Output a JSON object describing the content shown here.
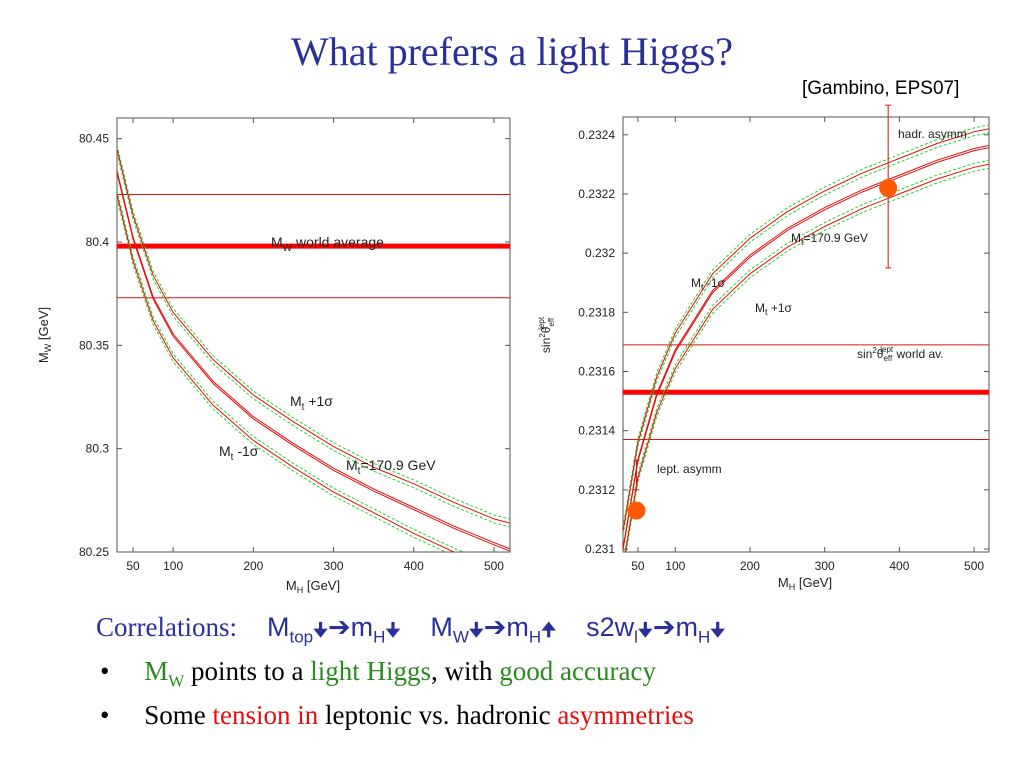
{
  "slide": {
    "title": "What prefers a light Higgs?",
    "citation": "[Gambino, EPS07]"
  },
  "colors": {
    "title": "#2b2f9a",
    "band": "#2bd12b",
    "curve": "#e01010",
    "average": "#ff0000",
    "marker": "#ff5a00",
    "green_text": "#2a8a1f"
  },
  "chart_data": [
    {
      "type": "line",
      "xlabel": "M_H [GeV]",
      "ylabel": "M_W [GeV]",
      "xlim": [
        30,
        520
      ],
      "ylim": [
        80.25,
        80.46
      ],
      "x_ticks": [
        "50",
        "100",
        "200",
        "300",
        "400",
        "500"
      ],
      "y_ticks": [
        "80.25",
        "80.3",
        "80.35",
        "80.4",
        "80.45"
      ],
      "labels": {
        "world_average": "M_W world average",
        "mt_plus": "M_t +1σ",
        "mt_minus": "M_t -1σ",
        "mt_central": "M_t=170.9 GeV"
      },
      "world_average": {
        "center": 80.398,
        "upper": 80.423,
        "lower": 80.373
      },
      "series": [
        {
          "name": "M_t +1σ",
          "x": [
            30,
            50,
            75,
            100,
            150,
            200,
            250,
            300,
            350,
            400,
            450,
            500,
            520
          ],
          "y": [
            80.445,
            80.413,
            80.384,
            80.366,
            80.343,
            80.326,
            80.313,
            80.301,
            80.291,
            80.283,
            80.274,
            80.266,
            80.264
          ]
        },
        {
          "name": "M_t=170.9 GeV",
          "x": [
            30,
            50,
            75,
            100,
            150,
            200,
            250,
            300,
            350,
            400,
            450,
            500,
            520
          ],
          "y": [
            80.434,
            80.402,
            80.373,
            80.355,
            80.332,
            80.315,
            80.302,
            80.29,
            80.28,
            80.271,
            80.262,
            80.254,
            80.251
          ]
        },
        {
          "name": "M_t -1σ",
          "x": [
            30,
            50,
            75,
            100,
            150,
            200,
            250,
            300,
            350,
            400,
            450,
            500,
            520
          ],
          "y": [
            80.423,
            80.391,
            80.362,
            80.344,
            80.321,
            80.304,
            80.291,
            80.279,
            80.269,
            80.259,
            80.25,
            80.242,
            80.239
          ]
        }
      ]
    },
    {
      "type": "line",
      "xlabel": "M_H [GeV]",
      "ylabel": "sin²θ_eff^lept",
      "xlim": [
        30,
        520
      ],
      "ylim": [
        0.23099,
        0.23246
      ],
      "x_ticks": [
        "50",
        "100",
        "200",
        "300",
        "400",
        "500"
      ],
      "y_ticks": [
        "0.231",
        "0.2312",
        "0.2314",
        "0.2316",
        "0.2318",
        "0.232",
        "0.2322",
        "0.2324"
      ],
      "labels": {
        "world_average": "sin²θ_eff^lept world av.",
        "mt_minus": "M_t -1σ",
        "mt_plus": "M_t +1σ",
        "mt_central": "M_t=170.9 GeV",
        "hadr": "hadr. asymm",
        "lept": "lept. asymm"
      },
      "world_average": {
        "center": 0.23153,
        "upper": 0.23169,
        "lower": 0.23137
      },
      "measurements": [
        {
          "name": "lept. asymm",
          "x": 48,
          "y": 0.23113,
          "err_low": 0.2312,
          "err_high": 0.2313
        },
        {
          "name": "hadr. asymm",
          "x": 385,
          "y": 0.23222,
          "err_low": 0.23195,
          "err_high": 0.2325
        }
      ],
      "series": [
        {
          "name": "M_t -1σ",
          "x": [
            30,
            50,
            75,
            100,
            150,
            200,
            250,
            300,
            350,
            400,
            450,
            500,
            520
          ],
          "y": [
            0.23106,
            0.23136,
            0.23158,
            0.23173,
            0.23193,
            0.23205,
            0.23214,
            0.23221,
            0.23227,
            0.23232,
            0.23237,
            0.23241,
            0.23242
          ]
        },
        {
          "name": "M_t=170.9 GeV",
          "x": [
            30,
            50,
            75,
            100,
            150,
            200,
            250,
            300,
            350,
            400,
            450,
            500,
            520
          ],
          "y": [
            0.231,
            0.2313,
            0.23152,
            0.23167,
            0.23187,
            0.23199,
            0.23208,
            0.23215,
            0.23221,
            0.23226,
            0.23231,
            0.23235,
            0.23236
          ]
        },
        {
          "name": "M_t +1σ",
          "x": [
            30,
            50,
            75,
            100,
            150,
            200,
            250,
            300,
            350,
            400,
            450,
            500,
            520
          ],
          "y": [
            0.23094,
            0.23124,
            0.23146,
            0.23161,
            0.23181,
            0.23193,
            0.23202,
            0.23209,
            0.23215,
            0.2322,
            0.23225,
            0.23229,
            0.2323
          ]
        }
      ]
    }
  ],
  "text": {
    "correlations_label": "Correlations:",
    "c1_main": "M",
    "c1_sub": "top",
    "c1_res": "m",
    "c1_res_sub": "H",
    "c2_main": "M",
    "c2_sub": "W",
    "c2_res": "m",
    "c2_res_sub": "H",
    "c3_main": "s2w",
    "c3_sub": "l",
    "c3_res": "m",
    "c3_res_sub": "H",
    "down_arrow": "🠋",
    "up_arrow": "🠉",
    "right_arrow": "➔",
    "bullet_char": "•",
    "b1_mw": "M",
    "b1_mw_sub": "W",
    "b1_part1": " points to a ",
    "b1_light": "light Higgs",
    "b1_part2": ", with ",
    "b1_good": "good accuracy",
    "b2_part1": "Some ",
    "b2_tension": "tension in",
    "b2_part2": " leptonic vs. hadronic ",
    "b2_asym": "asymmetries"
  }
}
